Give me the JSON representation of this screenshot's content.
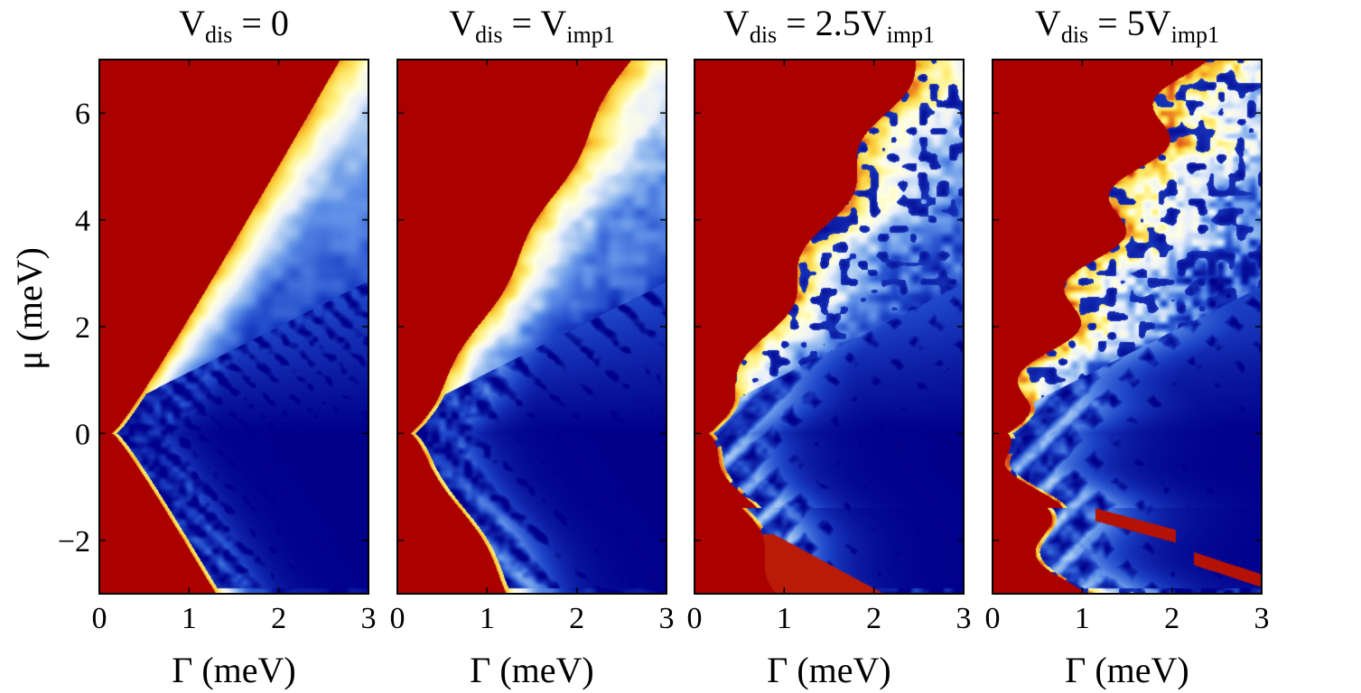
{
  "chart_data": [
    {
      "type": "heatmap",
      "title_main": "V",
      "title_sub": "dis",
      "title_rhs": " = 0",
      "title_rhs_sub": "",
      "xlabel": "Γ (meV)",
      "ylabel": "μ (meV)",
      "xlim": [
        0,
        3
      ],
      "ylim": [
        -3,
        7
      ],
      "xticks": [
        "0",
        "1",
        "2",
        "3"
      ],
      "yticks": [
        "−2",
        "0",
        "2",
        "4",
        "6"
      ],
      "disorder": 0
    },
    {
      "type": "heatmap",
      "title_main": "V",
      "title_sub": "dis",
      "title_rhs": " = V",
      "title_rhs_sub": "imp1",
      "xlabel": "Γ (meV)",
      "ylabel": "",
      "xlim": [
        0,
        3
      ],
      "ylim": [
        -3,
        7
      ],
      "xticks": [
        "0",
        "1",
        "2",
        "3"
      ],
      "yticks": [],
      "disorder": 1
    },
    {
      "type": "heatmap",
      "title_main": "V",
      "title_sub": "dis",
      "title_rhs": " = 2.5V",
      "title_rhs_sub": "imp1",
      "xlabel": "Γ (meV)",
      "ylabel": "",
      "xlim": [
        0,
        3
      ],
      "ylim": [
        -3,
        7
      ],
      "xticks": [
        "0",
        "1",
        "2",
        "3"
      ],
      "yticks": [],
      "disorder": 2.5
    },
    {
      "type": "heatmap",
      "title_main": "V",
      "title_sub": "dis",
      "title_rhs": " = 5V",
      "title_rhs_sub": "imp1",
      "xlabel": "Γ (meV)",
      "ylabel": "",
      "xlim": [
        0,
        3
      ],
      "ylim": [
        -3,
        7
      ],
      "xticks": [
        "0",
        "1",
        "2",
        "3"
      ],
      "yticks": [],
      "disorder": 5
    }
  ],
  "colormap": [
    "#00008b",
    "#1e46c8",
    "#5a8ce6",
    "#a0c3f0",
    "#ebf0fa",
    "#ffffe1",
    "#fff07d",
    "#fac832",
    "#e6641e",
    "#aa0000"
  ]
}
